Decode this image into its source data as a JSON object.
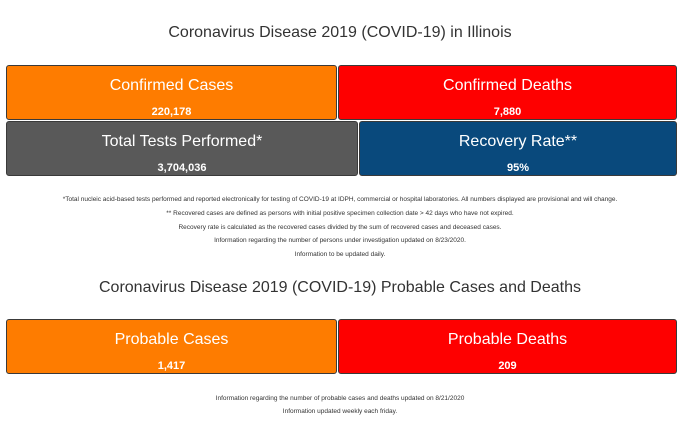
{
  "main_title": "Coronavirus Disease 2019 (COVID-19) in Illinois",
  "stats": {
    "confirmed_cases": {
      "label": "Confirmed Cases",
      "value": "220,178",
      "color": "#fe7c00"
    },
    "confirmed_deaths": {
      "label": "Confirmed Deaths",
      "value": "7,880",
      "color": "#fe0000"
    },
    "total_tests": {
      "label": "Total Tests Performed*",
      "value": "3,704,036",
      "color": "#595959"
    },
    "recovery_rate": {
      "label": "Recovery Rate**",
      "value": "95%",
      "color": "#09497c"
    }
  },
  "notes": [
    "*Total nucleic acid-based tests performed and reported electronically for testing of COVID-19 at IDPH, commercial or hospital laboratories. All numbers displayed are provisional and will change.",
    "** Recovered cases are defined as persons with initial positive specimen collection date > 42 days who have not expired.",
    "Recovery rate is calculated as the recovered cases divided by the sum of recovered cases and deceased cases.",
    "Information regarding the number of persons under investigation updated on 8/23/2020.",
    "Information to be updated daily."
  ],
  "probable_title": "Coronavirus Disease 2019 (COVID-19) Probable Cases and Deaths",
  "probable": {
    "cases": {
      "label": "Probable Cases",
      "value": "1,417",
      "color": "#fe7c00"
    },
    "deaths": {
      "label": "Probable Deaths",
      "value": "209",
      "color": "#fe0000"
    }
  },
  "probable_notes": [
    "Information regarding the number of probable cases and deaths updated on 8/21/2020",
    "Information updated weekly each friday."
  ]
}
